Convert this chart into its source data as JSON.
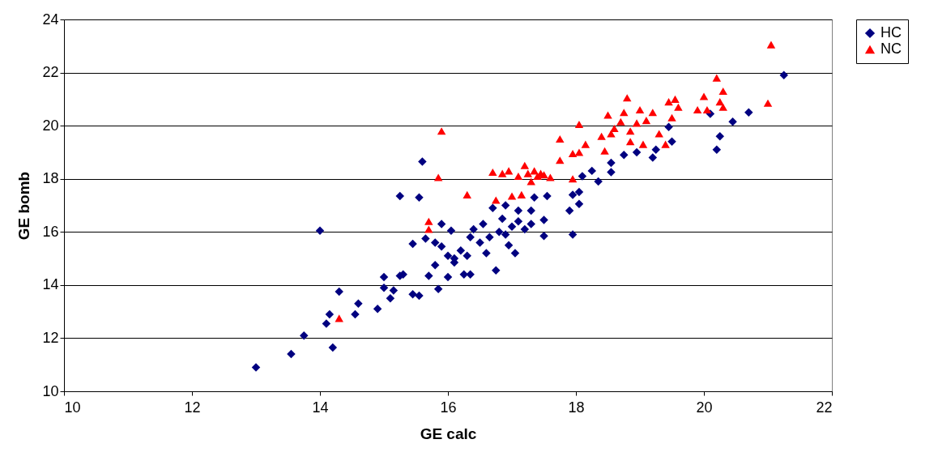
{
  "chart_data": {
    "type": "scatter",
    "xlabel": "GE calc",
    "ylabel": "GE bomb",
    "xlim": [
      10,
      22
    ],
    "xticks": [
      10,
      12,
      14,
      16,
      18,
      20,
      22
    ],
    "ylim": [
      10,
      24
    ],
    "yticks": [
      10,
      12,
      14,
      16,
      18,
      20,
      22,
      24
    ],
    "grid": "y",
    "legend": "right",
    "series": [
      {
        "name": "HC",
        "color": "#000080",
        "marker": "diamond",
        "x": [
          13.0,
          13.55,
          13.75,
          14.1,
          14.15,
          14.2,
          14.3,
          14.0,
          14.55,
          14.6,
          14.9,
          15.0,
          15.0,
          15.1,
          15.15,
          15.25,
          15.3,
          15.25,
          15.45,
          15.45,
          15.55,
          15.55,
          15.6,
          15.65,
          15.7,
          15.8,
          15.8,
          15.85,
          15.9,
          15.9,
          16.0,
          16.0,
          16.05,
          16.1,
          16.1,
          16.2,
          16.25,
          16.3,
          16.35,
          16.35,
          16.4,
          16.5,
          16.55,
          16.6,
          16.65,
          16.7,
          16.75,
          16.8,
          16.85,
          16.9,
          16.9,
          16.95,
          17.0,
          17.05,
          17.1,
          17.1,
          17.2,
          17.3,
          17.3,
          17.35,
          17.5,
          17.5,
          17.55,
          17.9,
          17.95,
          17.95,
          18.05,
          18.05,
          18.1,
          18.25,
          18.35,
          18.55,
          18.55,
          18.75,
          18.95,
          19.2,
          19.25,
          19.45,
          19.5,
          20.1,
          20.2,
          20.25,
          20.45,
          20.7,
          21.25
        ],
        "values": [
          10.9,
          11.4,
          12.1,
          12.55,
          12.9,
          11.65,
          13.75,
          16.05,
          12.9,
          13.3,
          13.1,
          14.3,
          13.9,
          13.5,
          13.8,
          14.35,
          14.4,
          17.35,
          15.55,
          13.65,
          13.6,
          17.3,
          18.65,
          15.75,
          14.35,
          15.6,
          14.75,
          13.85,
          15.45,
          16.3,
          14.3,
          15.1,
          16.05,
          15.0,
          14.85,
          15.3,
          14.4,
          15.1,
          14.4,
          15.8,
          16.1,
          15.6,
          16.3,
          15.2,
          15.8,
          16.9,
          14.55,
          16.0,
          16.5,
          15.9,
          17.0,
          15.5,
          16.2,
          15.2,
          16.8,
          16.4,
          16.1,
          16.3,
          16.8,
          17.3,
          15.85,
          16.45,
          17.35,
          16.8,
          17.4,
          15.9,
          17.05,
          17.5,
          18.1,
          18.3,
          17.9,
          18.25,
          18.6,
          18.9,
          19.0,
          18.8,
          19.1,
          19.95,
          19.4,
          20.45,
          19.1,
          19.6,
          20.15,
          20.5,
          21.9
        ]
      },
      {
        "name": "NC",
        "color": "#ff0000",
        "marker": "triangle",
        "x": [
          14.3,
          15.7,
          15.7,
          15.85,
          15.9,
          16.3,
          16.7,
          16.75,
          16.85,
          16.95,
          17.0,
          17.1,
          17.15,
          17.2,
          17.25,
          17.3,
          17.35,
          17.4,
          17.45,
          17.5,
          17.6,
          17.75,
          17.75,
          17.95,
          17.95,
          18.05,
          18.05,
          18.15,
          18.4,
          18.45,
          18.5,
          18.55,
          18.6,
          18.7,
          18.75,
          18.8,
          18.85,
          18.85,
          18.95,
          19.0,
          19.05,
          19.1,
          19.2,
          19.3,
          19.4,
          19.45,
          19.5,
          19.55,
          19.6,
          19.9,
          20.0,
          20.05,
          20.2,
          20.25,
          20.3,
          20.3,
          21.0,
          21.05
        ],
        "values": [
          12.75,
          16.4,
          16.1,
          18.05,
          19.8,
          17.4,
          18.25,
          17.2,
          18.2,
          18.3,
          17.35,
          18.1,
          17.4,
          18.5,
          18.2,
          17.9,
          18.3,
          18.1,
          18.2,
          18.15,
          18.05,
          18.7,
          19.5,
          18.95,
          18.0,
          20.05,
          19.0,
          19.3,
          19.6,
          19.05,
          20.4,
          19.7,
          19.9,
          20.15,
          20.5,
          21.05,
          19.4,
          19.8,
          20.1,
          20.6,
          19.3,
          20.2,
          20.5,
          19.7,
          19.3,
          20.9,
          20.3,
          21.0,
          20.7,
          20.6,
          21.1,
          20.6,
          21.8,
          20.9,
          21.3,
          20.7,
          20.85,
          23.05
        ]
      }
    ]
  }
}
